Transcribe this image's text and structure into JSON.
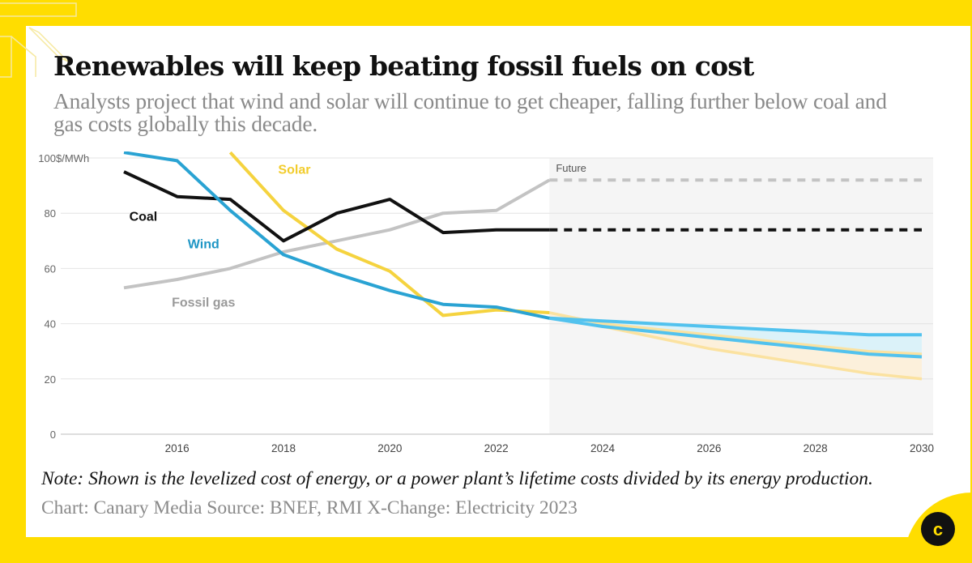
{
  "header": {
    "title": "Renewables will keep beating fossil fuels on cost",
    "subtitle": "Analysts project that wind and solar will continue to get cheaper, falling further below coal and gas costs globally this decade."
  },
  "footer": {
    "note": "Note: Shown is the levelized cost of energy, or a power plant’s lifetime costs divided by its energy production.",
    "credit": "Chart: Canary Media Source: BNEF, RMI X-Change: Electricity 2023"
  },
  "brand": {
    "logo_letter": "c",
    "color_yellow": "#ffdd00"
  },
  "chart_data": {
    "type": "line",
    "unit_label": "$/MWh",
    "ylim": [
      0,
      100
    ],
    "xlim": [
      2014,
      2030.2
    ],
    "yticks": [
      0,
      20,
      40,
      60,
      80,
      100
    ],
    "xticks": [
      2016,
      2018,
      2020,
      2022,
      2024,
      2026,
      2028,
      2030
    ],
    "future_start": 2023,
    "future_label": "Future",
    "series": [
      {
        "name": "Fossil gas",
        "color": "#c3c3c3",
        "label_color": "#9a9a9a",
        "label_x": 2015.9,
        "label_y": 48,
        "values": [
          [
            2015,
            53
          ],
          [
            2016,
            56
          ],
          [
            2017,
            60
          ],
          [
            2018,
            66
          ],
          [
            2019,
            70
          ],
          [
            2020,
            74
          ],
          [
            2021,
            80
          ],
          [
            2022,
            81
          ],
          [
            2023,
            92
          ]
        ],
        "projection": [
          [
            2023,
            92
          ],
          [
            2030,
            92
          ]
        ]
      },
      {
        "name": "Solar",
        "color": "#f5d33f",
        "label_color": "#f2cc2c",
        "label_x": 2017.9,
        "label_y": 96,
        "values": [
          [
            2017,
            102
          ],
          [
            2018,
            81
          ],
          [
            2019,
            67
          ],
          [
            2020,
            59
          ],
          [
            2021,
            43
          ],
          [
            2022,
            45
          ],
          [
            2023,
            44
          ]
        ],
        "projection_high": [
          [
            2023,
            44
          ],
          [
            2024,
            40
          ],
          [
            2025,
            38
          ],
          [
            2026,
            36
          ],
          [
            2027,
            34
          ],
          [
            2028,
            32
          ],
          [
            2029,
            30
          ],
          [
            2030,
            29
          ]
        ],
        "projection_low": [
          [
            2023,
            42
          ],
          [
            2024,
            39
          ],
          [
            2025,
            35
          ],
          [
            2026,
            31
          ],
          [
            2027,
            28
          ],
          [
            2028,
            25
          ],
          [
            2029,
            22
          ],
          [
            2030,
            20
          ]
        ]
      },
      {
        "name": "Coal",
        "color": "#111111",
        "label_color": "#111111",
        "label_x": 2015.1,
        "label_y": 79,
        "values": [
          [
            2015,
            95
          ],
          [
            2016,
            86
          ],
          [
            2017,
            85
          ],
          [
            2018,
            70
          ],
          [
            2019,
            80
          ],
          [
            2020,
            85
          ],
          [
            2021,
            73
          ],
          [
            2022,
            74
          ],
          [
            2023,
            74
          ]
        ],
        "projection": [
          [
            2023,
            74
          ],
          [
            2030,
            74
          ]
        ]
      },
      {
        "name": "Wind",
        "color": "#2aa3d3",
        "label_color": "#1f96c5",
        "label_x": 2016.2,
        "label_y": 69,
        "values": [
          [
            2015,
            102
          ],
          [
            2016,
            99
          ],
          [
            2017,
            81
          ],
          [
            2018,
            65
          ],
          [
            2019,
            58
          ],
          [
            2020,
            52
          ],
          [
            2021,
            47
          ],
          [
            2022,
            46
          ],
          [
            2023,
            42
          ]
        ],
        "projection_high": [
          [
            2023,
            42
          ],
          [
            2024,
            41
          ],
          [
            2025,
            40
          ],
          [
            2026,
            39
          ],
          [
            2027,
            38
          ],
          [
            2028,
            37
          ],
          [
            2029,
            36
          ],
          [
            2030,
            36
          ]
        ],
        "projection_low": [
          [
            2023,
            42
          ],
          [
            2024,
            39
          ],
          [
            2025,
            37
          ],
          [
            2026,
            35
          ],
          [
            2027,
            33
          ],
          [
            2028,
            31
          ],
          [
            2029,
            29
          ],
          [
            2030,
            28
          ]
        ]
      }
    ]
  }
}
